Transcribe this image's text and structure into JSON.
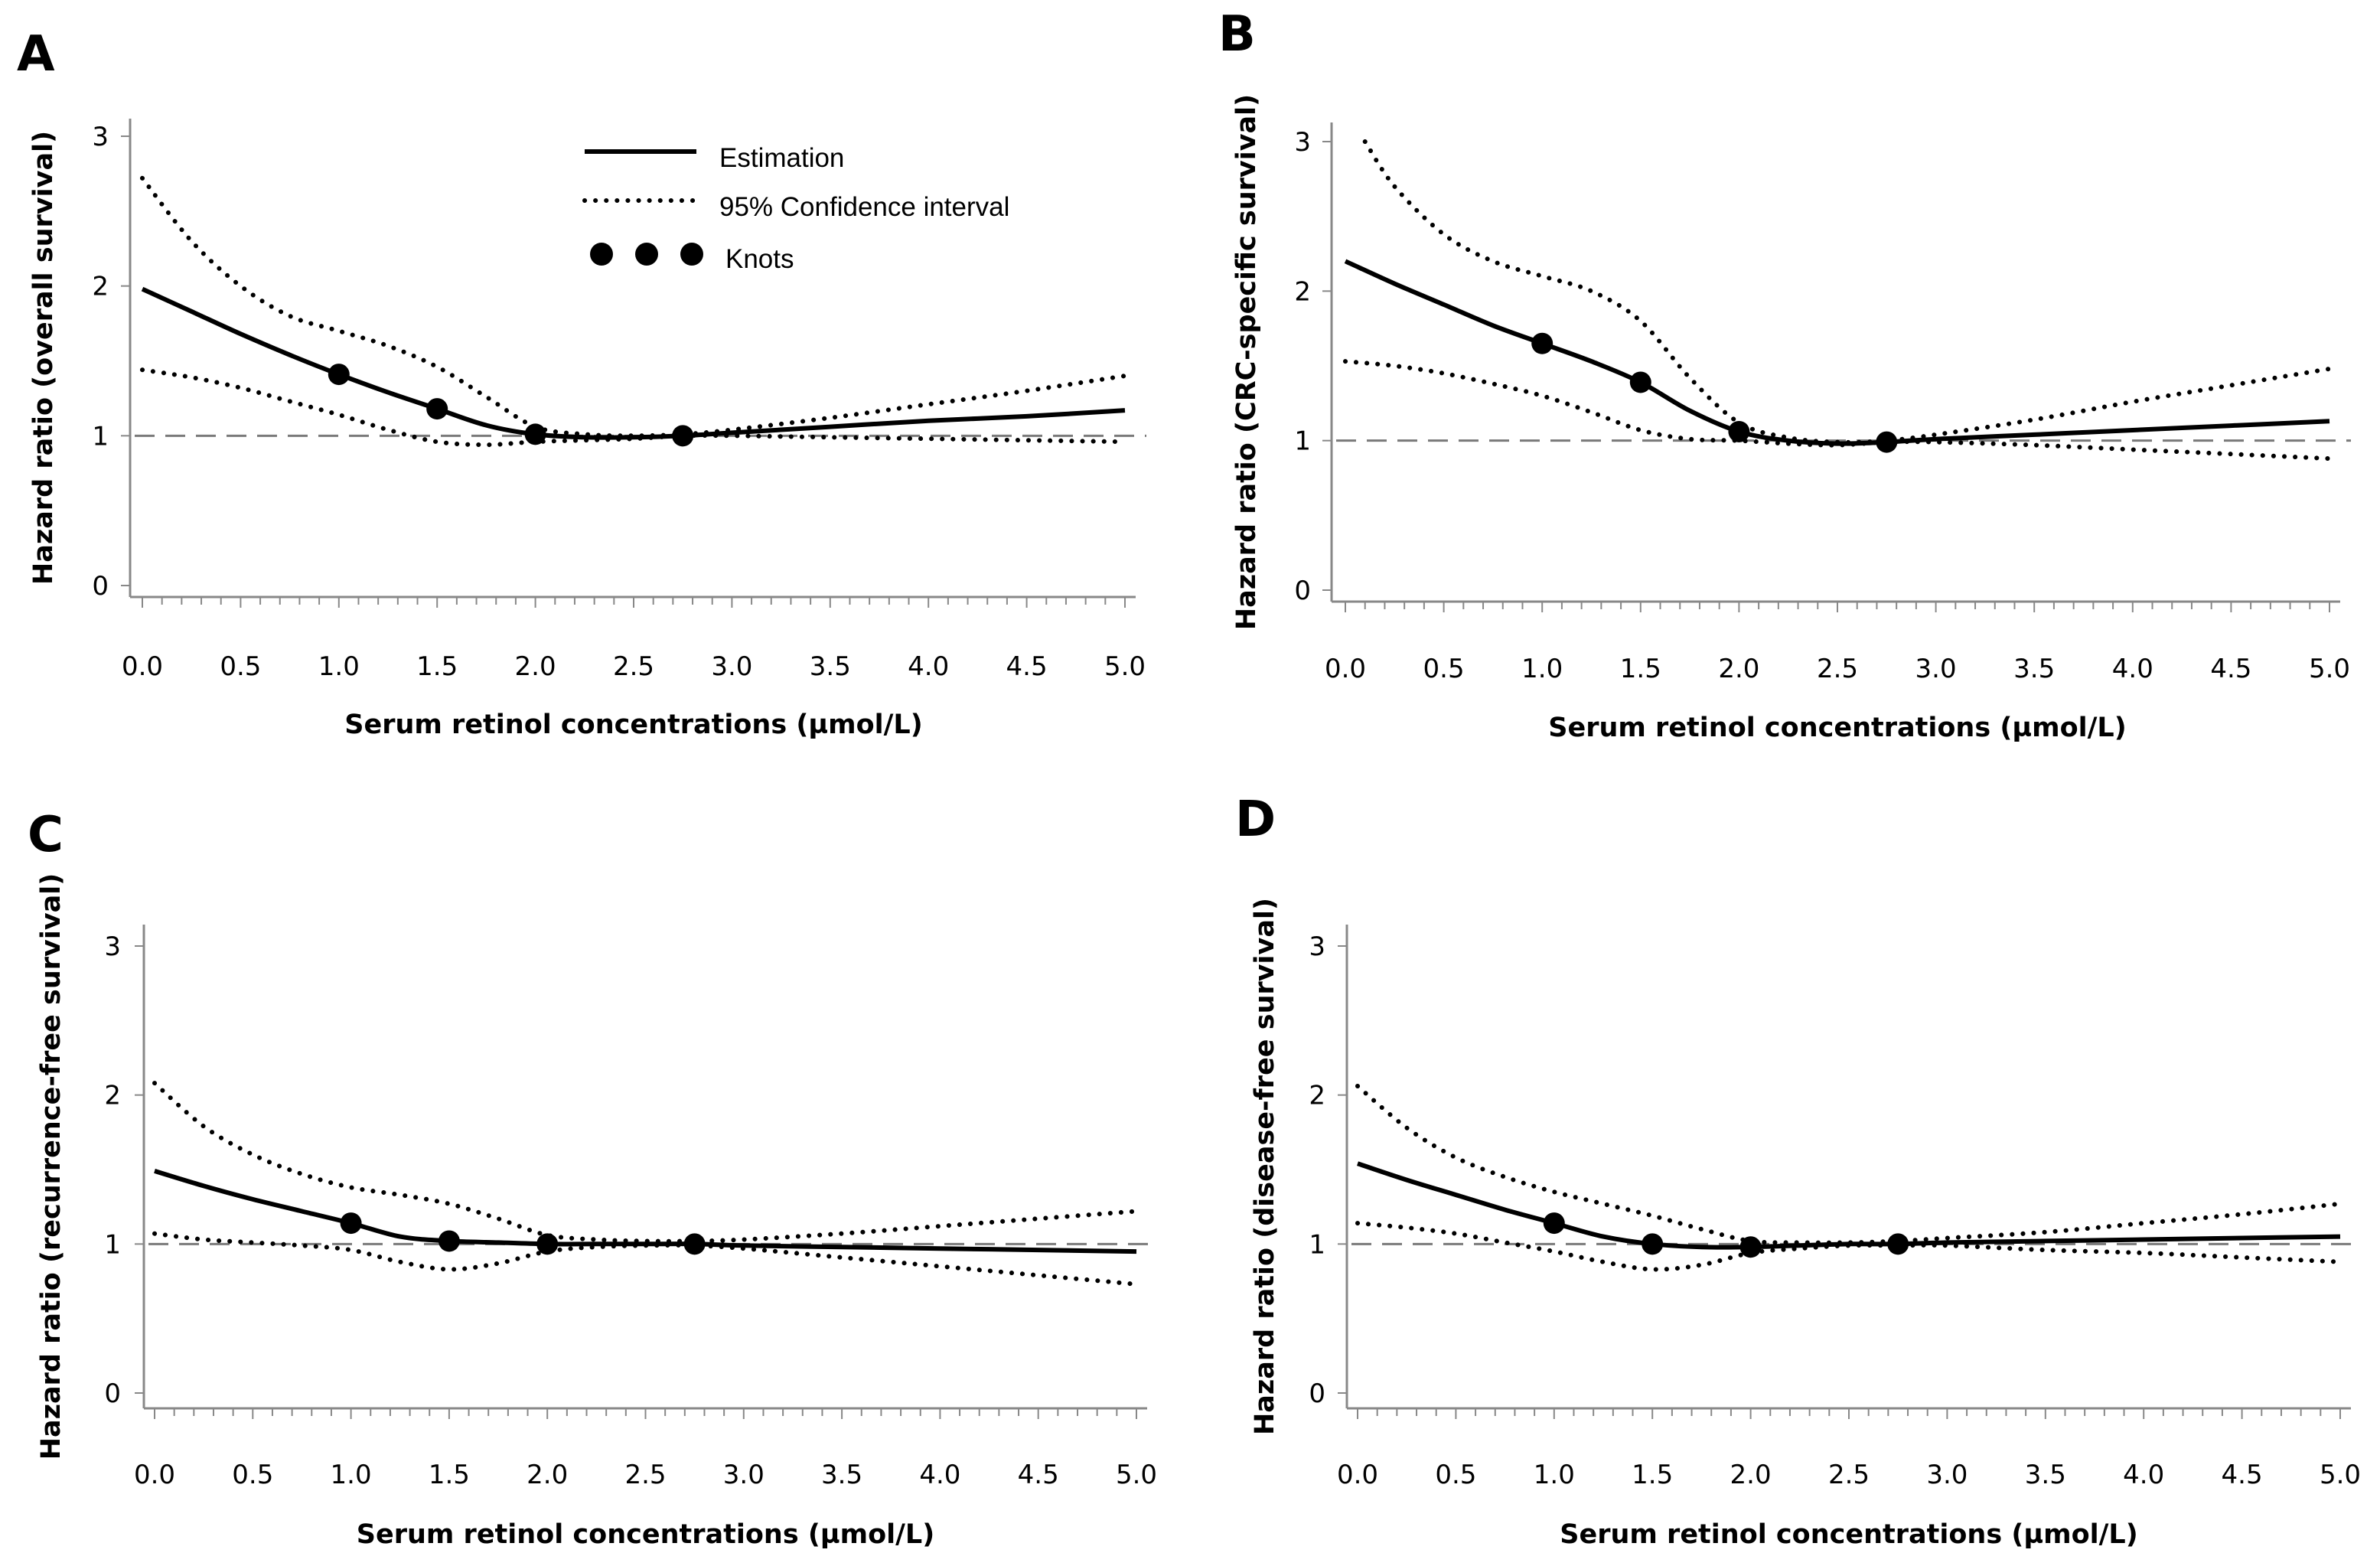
{
  "figure": {
    "colors": {
      "ink": "#000000",
      "reference_line": "#7a7a7a",
      "axis": "#888888",
      "background": "#ffffff"
    },
    "legend": {
      "estimation_label": "Estimation",
      "ci_label": "95% Confidence interval",
      "knots_label": "Knots"
    }
  },
  "chart_data": [
    {
      "type": "line",
      "panel": "A",
      "xlabel": "Serum retinol concentrations (µmol/L)",
      "ylabel": "Hazard ratio (overall survival)",
      "xlim": [
        0,
        5
      ],
      "ylim": [
        0,
        3
      ],
      "x_ticks": [
        "0.0",
        "0.5",
        "1.0",
        "1.5",
        "2.0",
        "2.5",
        "3.0",
        "3.5",
        "4.0",
        "4.5",
        "5.0"
      ],
      "y_ticks": [
        "0",
        "1",
        "2",
        "3"
      ],
      "reference_y": 1,
      "series": [
        {
          "name": "Estimation",
          "style": "solid",
          "x": [
            0,
            0.25,
            0.5,
            0.75,
            1,
            1.25,
            1.5,
            1.75,
            2,
            2.25,
            2.5,
            2.75,
            3,
            3.5,
            4,
            4.5,
            5
          ],
          "values": [
            1.98,
            1.83,
            1.68,
            1.54,
            1.41,
            1.29,
            1.18,
            1.07,
            1.01,
            0.99,
            0.99,
            1.0,
            1.02,
            1.06,
            1.1,
            1.13,
            1.17
          ]
        },
        {
          "name": "95% CI upper",
          "style": "dotted",
          "x": [
            0,
            0.25,
            0.5,
            0.75,
            1,
            1.25,
            1.5,
            1.75,
            2,
            2.25,
            2.5,
            2.75,
            3,
            3.5,
            4,
            4.5,
            5
          ],
          "values": [
            2.72,
            2.3,
            2.0,
            1.8,
            1.7,
            1.6,
            1.46,
            1.26,
            1.06,
            1.01,
            1.0,
            1.01,
            1.04,
            1.12,
            1.21,
            1.3,
            1.4
          ]
        },
        {
          "name": "95% CI lower",
          "style": "dotted",
          "x": [
            0,
            0.25,
            0.5,
            0.75,
            1,
            1.25,
            1.5,
            1.75,
            2,
            2.25,
            2.5,
            2.75,
            3,
            3.5,
            4,
            4.5,
            5
          ],
          "values": [
            1.44,
            1.39,
            1.32,
            1.23,
            1.14,
            1.04,
            0.96,
            0.94,
            0.96,
            0.97,
            0.98,
            1.0,
            1.0,
            0.99,
            0.98,
            0.97,
            0.96
          ]
        }
      ],
      "knots": {
        "x": [
          1,
          1.5,
          2,
          2.75
        ],
        "values": [
          1.41,
          1.18,
          1.01,
          1.0
        ]
      }
    },
    {
      "type": "line",
      "panel": "B",
      "xlabel": "Serum retinol concentrations (µmol/L)",
      "ylabel": "Hazard ratio (CRC-specific survival)",
      "xlim": [
        0,
        5
      ],
      "ylim": [
        0,
        3
      ],
      "x_ticks": [
        "0.0",
        "0.5",
        "1.0",
        "1.5",
        "2.0",
        "2.5",
        "3.0",
        "3.5",
        "4.0",
        "4.5",
        "5.0"
      ],
      "y_ticks": [
        "0",
        "1",
        "2",
        "3"
      ],
      "reference_y": 1,
      "series": [
        {
          "name": "Estimation",
          "style": "solid",
          "x": [
            0,
            0.25,
            0.5,
            0.75,
            1,
            1.25,
            1.5,
            1.75,
            2,
            2.25,
            2.5,
            2.75,
            3,
            3.5,
            4,
            4.5,
            5
          ],
          "values": [
            2.2,
            2.05,
            1.91,
            1.77,
            1.65,
            1.53,
            1.39,
            1.2,
            1.06,
            1.0,
            0.98,
            0.99,
            1.01,
            1.04,
            1.07,
            1.1,
            1.13
          ]
        },
        {
          "name": "95% CI upper",
          "style": "dotted",
          "x": [
            0.1,
            0.25,
            0.5,
            0.75,
            1,
            1.25,
            1.5,
            1.75,
            2,
            2.25,
            2.5,
            2.75,
            3,
            3.5,
            4,
            4.5,
            5
          ],
          "values": [
            3.0,
            2.7,
            2.38,
            2.2,
            2.1,
            2.0,
            1.8,
            1.42,
            1.12,
            1.02,
            0.99,
            1.0,
            1.04,
            1.14,
            1.26,
            1.37,
            1.48
          ]
        },
        {
          "name": "95% CI lower",
          "style": "dotted",
          "x": [
            0,
            0.25,
            0.5,
            0.75,
            1,
            1.25,
            1.5,
            1.75,
            2,
            2.25,
            2.5,
            2.75,
            3,
            3.5,
            4,
            4.5,
            5
          ],
          "values": [
            1.53,
            1.5,
            1.45,
            1.38,
            1.3,
            1.19,
            1.07,
            1.01,
            1.0,
            0.98,
            0.97,
            0.99,
            0.99,
            0.97,
            0.94,
            0.91,
            0.88
          ]
        }
      ],
      "knots": {
        "x": [
          1,
          1.5,
          2,
          2.75
        ],
        "values": [
          1.65,
          1.39,
          1.06,
          0.99
        ]
      }
    },
    {
      "type": "line",
      "panel": "C",
      "xlabel": "Serum retinol concentrations (µmol/L)",
      "ylabel": "Hazard ratio (recurrence-free survival)",
      "xlim": [
        0,
        5
      ],
      "ylim": [
        0,
        3
      ],
      "x_ticks": [
        "0.0",
        "0.5",
        "1.0",
        "1.5",
        "2.0",
        "2.5",
        "3.0",
        "3.5",
        "4.0",
        "4.5",
        "5.0"
      ],
      "y_ticks": [
        "0",
        "1",
        "2",
        "3"
      ],
      "reference_y": 1,
      "series": [
        {
          "name": "Estimation",
          "style": "solid",
          "x": [
            0,
            0.25,
            0.5,
            0.75,
            1,
            1.25,
            1.5,
            1.75,
            2,
            2.25,
            2.5,
            2.75,
            3,
            3.5,
            4,
            4.5,
            5
          ],
          "values": [
            1.49,
            1.39,
            1.3,
            1.22,
            1.14,
            1.05,
            1.02,
            1.01,
            1.0,
            1.0,
            1.0,
            1.0,
            0.99,
            0.98,
            0.97,
            0.96,
            0.95
          ]
        },
        {
          "name": "95% CI upper",
          "style": "dotted",
          "x": [
            0,
            0.25,
            0.5,
            0.75,
            1,
            1.25,
            1.5,
            1.75,
            2,
            2.25,
            2.5,
            2.75,
            3,
            3.5,
            4,
            4.5,
            5
          ],
          "values": [
            2.08,
            1.79,
            1.6,
            1.47,
            1.38,
            1.33,
            1.27,
            1.17,
            1.06,
            1.03,
            1.02,
            1.02,
            1.03,
            1.07,
            1.12,
            1.17,
            1.22
          ]
        },
        {
          "name": "95% CI lower",
          "style": "dotted",
          "x": [
            0,
            0.25,
            0.5,
            0.75,
            1,
            1.25,
            1.5,
            1.75,
            2,
            2.25,
            2.5,
            2.75,
            3,
            3.5,
            4,
            4.5,
            5
          ],
          "values": [
            1.07,
            1.03,
            1.01,
            0.99,
            0.96,
            0.88,
            0.83,
            0.87,
            0.95,
            0.98,
            0.99,
            0.99,
            0.97,
            0.91,
            0.85,
            0.79,
            0.73
          ]
        }
      ],
      "knots": {
        "x": [
          1,
          1.5,
          2,
          2.75
        ],
        "values": [
          1.14,
          1.02,
          1.0,
          1.0
        ]
      }
    },
    {
      "type": "line",
      "panel": "D",
      "xlabel": "Serum retinol concentrations (µmol/L)",
      "ylabel": "Hazard ratio (disease-free survival)",
      "xlim": [
        0,
        5
      ],
      "ylim": [
        0,
        3
      ],
      "x_ticks": [
        "0.0",
        "0.5",
        "1.0",
        "1.5",
        "2.0",
        "2.5",
        "3.0",
        "3.5",
        "4.0",
        "4.5",
        "5.0"
      ],
      "y_ticks": [
        "0",
        "1",
        "2",
        "3"
      ],
      "reference_y": 1,
      "series": [
        {
          "name": "Estimation",
          "style": "solid",
          "x": [
            0,
            0.25,
            0.5,
            0.75,
            1,
            1.25,
            1.5,
            1.75,
            2,
            2.25,
            2.5,
            2.75,
            3,
            3.5,
            4,
            4.5,
            5
          ],
          "values": [
            1.54,
            1.43,
            1.33,
            1.23,
            1.14,
            1.05,
            1.0,
            0.98,
            0.98,
            0.99,
            1.0,
            1.0,
            1.01,
            1.02,
            1.03,
            1.04,
            1.05
          ]
        },
        {
          "name": "95% CI upper",
          "style": "dotted",
          "x": [
            0,
            0.25,
            0.5,
            0.75,
            1,
            1.25,
            1.5,
            1.75,
            2,
            2.25,
            2.5,
            2.75,
            3,
            3.5,
            4,
            4.5,
            5
          ],
          "values": [
            2.06,
            1.78,
            1.58,
            1.45,
            1.35,
            1.27,
            1.19,
            1.1,
            1.02,
            1.01,
            1.01,
            1.02,
            1.04,
            1.08,
            1.14,
            1.2,
            1.27
          ]
        },
        {
          "name": "95% CI lower",
          "style": "dotted",
          "x": [
            0,
            0.25,
            0.5,
            0.75,
            1,
            1.25,
            1.5,
            1.75,
            2,
            2.25,
            2.5,
            2.75,
            3,
            3.5,
            4,
            4.5,
            5
          ],
          "values": [
            1.14,
            1.11,
            1.07,
            1.01,
            0.95,
            0.88,
            0.83,
            0.86,
            0.94,
            0.97,
            0.99,
            0.99,
            0.99,
            0.96,
            0.94,
            0.91,
            0.88
          ]
        }
      ],
      "knots": {
        "x": [
          1,
          1.5,
          2,
          2.75
        ],
        "values": [
          1.14,
          1.0,
          0.98,
          1.0
        ]
      }
    }
  ]
}
